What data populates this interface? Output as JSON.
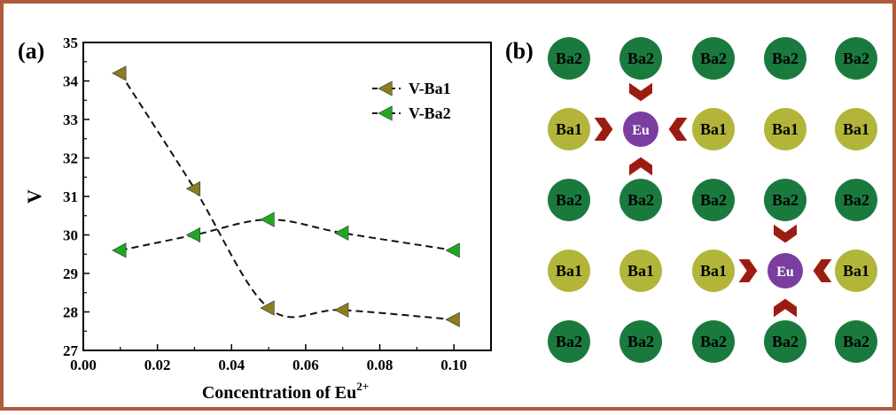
{
  "frame_color": "#b05a3c",
  "panel_a": {
    "label": "(a)",
    "chart_data": {
      "type": "line",
      "title": "",
      "xlabel": "Concentration of Eu",
      "xlabel_superscript": "2+",
      "ylabel": "V",
      "xlim": [
        0.0,
        0.11
      ],
      "ylim": [
        27,
        35
      ],
      "xticks": [
        "0.00",
        "0.02",
        "0.04",
        "0.06",
        "0.08",
        "0.10"
      ],
      "yticks": [
        "27",
        "28",
        "29",
        "30",
        "31",
        "32",
        "33",
        "34",
        "35"
      ],
      "grid": false,
      "legend_position": "top-right",
      "series": [
        {
          "name": "V-Ba1",
          "color": "#8c7d1e",
          "marker": "left-triangle",
          "x": [
            0.01,
            0.03,
            0.05,
            0.07,
            0.1
          ],
          "y": [
            34.2,
            31.2,
            28.1,
            28.05,
            27.8
          ]
        },
        {
          "name": "V-Ba2",
          "color": "#1fa81f",
          "marker": "left-triangle",
          "x": [
            0.01,
            0.03,
            0.05,
            0.07,
            0.1
          ],
          "y": [
            29.6,
            30.0,
            30.4,
            30.05,
            29.6
          ]
        }
      ]
    }
  },
  "panel_b": {
    "label": "(b)",
    "colors": {
      "ba2": "#1a7a3e",
      "ba1": "#b3b53a",
      "eu": "#7a3ea0",
      "arrow": "#9c1c12"
    },
    "rows": [
      [
        "Ba2",
        "Ba2",
        "Ba2",
        "Ba2",
        "Ba2"
      ],
      [
        "Ba1",
        "Eu",
        "Ba1",
        "Ba1",
        "Ba1"
      ],
      [
        "Ba2",
        "Ba2",
        "Ba2",
        "Ba2",
        "Ba2"
      ],
      [
        "Ba1",
        "Ba1",
        "Ba1",
        "Eu",
        "Ba1"
      ],
      [
        "Ba2",
        "Ba2",
        "Ba2",
        "Ba2",
        "Ba2"
      ]
    ]
  }
}
